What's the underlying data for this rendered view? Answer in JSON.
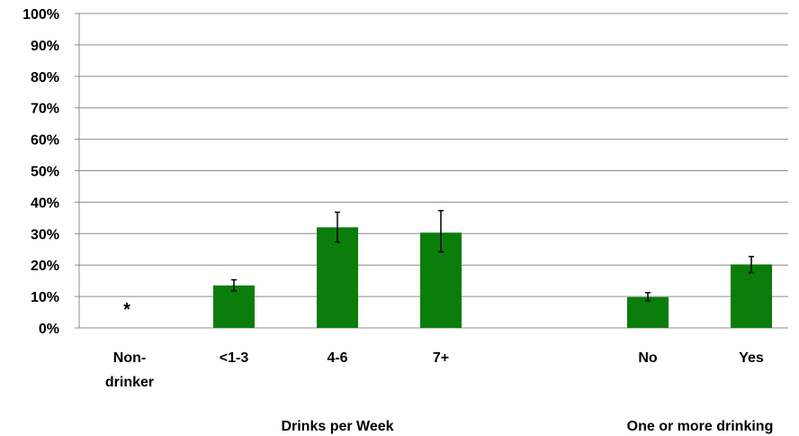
{
  "chart_data": {
    "type": "bar",
    "y_ticks": [
      "0%",
      "10%",
      "20%",
      "30%",
      "40%",
      "50%",
      "60%",
      "70%",
      "80%",
      "90%",
      "100%"
    ],
    "ylim": [
      0,
      100
    ],
    "grid": true,
    "legend": "none",
    "bar_color": "#0a7d0a",
    "categories": [
      {
        "lines": [
          "Non-",
          "drinker"
        ],
        "value": null,
        "err_low": null,
        "err_high": null,
        "marker": "*"
      },
      {
        "lines": [
          "<1-3"
        ],
        "value": 13.5,
        "err_low": 11.8,
        "err_high": 15.3
      },
      {
        "lines": [
          "4-6"
        ],
        "value": 32,
        "err_low": 27.3,
        "err_high": 36.8
      },
      {
        "lines": [
          "7+"
        ],
        "value": 30.3,
        "err_low": 24.2,
        "err_high": 37.3
      },
      {
        "lines": [
          "No"
        ],
        "value": 9.8,
        "err_low": 8.6,
        "err_high": 11.2
      },
      {
        "lines": [
          "Yes"
        ],
        "value": 20.2,
        "err_low": 17.6,
        "err_high": 22.7
      }
    ],
    "groups": [
      {
        "label": "Drinks per Week",
        "members": [
          0,
          1,
          2,
          3
        ]
      },
      {
        "label": "One or more drinking",
        "members": [
          4,
          5
        ]
      }
    ]
  }
}
